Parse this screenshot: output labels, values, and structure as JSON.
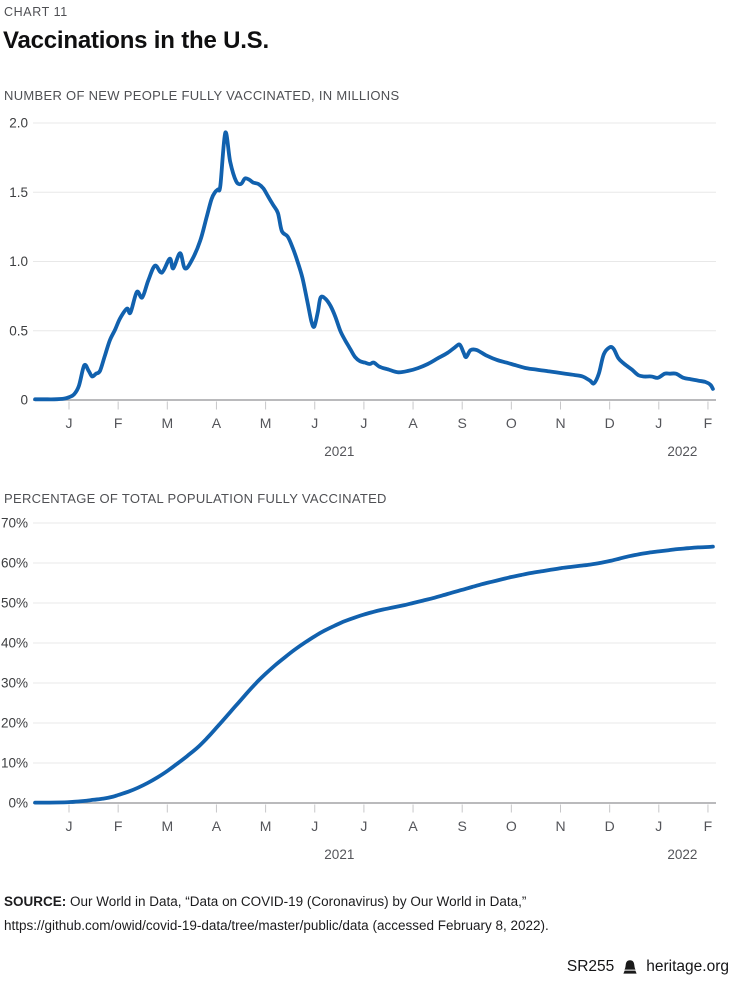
{
  "page": {
    "kicker": "CHART 11",
    "title": "Vaccinations in the U.S.",
    "source_label": "SOURCE:",
    "source_line1": " Our World in Data, “Data on COVID-19 (Coronavirus) by Our World in Data,”",
    "source_line2": "https://github.com/owid/covid-19-data/tree/master/public/data (accessed February 8, 2022).",
    "footer": {
      "report_id": "SR255",
      "site": "heritage.org",
      "logo": "liberty-bell-icon"
    }
  },
  "colors": {
    "line": "#1161ae",
    "grid": "#e8e8e8",
    "axis": "#a3a3a5",
    "tick": "#c7c7c9"
  },
  "chart_data": [
    {
      "type": "line",
      "title": "NUMBER OF NEW PEOPLE FULLY VACCINATED, IN MILLIONS",
      "x_unit": "months, Dec 2020 - Feb 2022 (0 = Jan 1, 2021)",
      "x_tick_labels": [
        "J",
        "F",
        "M",
        "A",
        "M",
        "J",
        "J",
        "A",
        "S",
        "O",
        "N",
        "D",
        "J",
        "F"
      ],
      "year_labels": [
        {
          "text": "2021",
          "month_index": 5.5
        },
        {
          "text": "2022",
          "month_index": 12.48
        }
      ],
      "y_ticks": [
        0,
        0.5,
        1.0,
        1.5,
        2.0
      ],
      "y_tick_labels": [
        "0",
        "0.5",
        "1.0",
        "1.5",
        "2.0"
      ],
      "ylim": [
        0,
        2.0
      ],
      "xlim": [
        -0.75,
        13.17
      ],
      "grid": true,
      "legend": "none",
      "points": [
        [
          -0.69,
          0.005
        ],
        [
          -0.5,
          0.005
        ],
        [
          -0.3,
          0.005
        ],
        [
          -0.1,
          0.01
        ],
        [
          0,
          0.02
        ],
        [
          0.1,
          0.04
        ],
        [
          0.2,
          0.1
        ],
        [
          0.31,
          0.25
        ],
        [
          0.4,
          0.21
        ],
        [
          0.47,
          0.17
        ],
        [
          0.55,
          0.19
        ],
        [
          0.63,
          0.21
        ],
        [
          0.73,
          0.32
        ],
        [
          0.83,
          0.43
        ],
        [
          0.94,
          0.51
        ],
        [
          1.04,
          0.59
        ],
        [
          1.18,
          0.66
        ],
        [
          1.25,
          0.63
        ],
        [
          1.38,
          0.78
        ],
        [
          1.49,
          0.74
        ],
        [
          1.61,
          0.86
        ],
        [
          1.75,
          0.97
        ],
        [
          1.89,
          0.92
        ],
        [
          2.05,
          1.02
        ],
        [
          2.12,
          0.95
        ],
        [
          2.26,
          1.06
        ],
        [
          2.36,
          0.95
        ],
        [
          2.5,
          1.01
        ],
        [
          2.67,
          1.15
        ],
        [
          2.8,
          1.32
        ],
        [
          2.9,
          1.45
        ],
        [
          2.97,
          1.5
        ],
        [
          3.03,
          1.52
        ],
        [
          3.08,
          1.55
        ],
        [
          3.18,
          1.93
        ],
        [
          3.28,
          1.72
        ],
        [
          3.4,
          1.58
        ],
        [
          3.5,
          1.56
        ],
        [
          3.58,
          1.6
        ],
        [
          3.67,
          1.59
        ],
        [
          3.75,
          1.57
        ],
        [
          3.85,
          1.56
        ],
        [
          3.95,
          1.53
        ],
        [
          4.05,
          1.47
        ],
        [
          4.15,
          1.41
        ],
        [
          4.25,
          1.35
        ],
        [
          4.33,
          1.22
        ],
        [
          4.45,
          1.18
        ],
        [
          4.55,
          1.1
        ],
        [
          4.65,
          1
        ],
        [
          4.75,
          0.88
        ],
        [
          4.85,
          0.71
        ],
        [
          4.93,
          0.57
        ],
        [
          4.99,
          0.53
        ],
        [
          5.06,
          0.63
        ],
        [
          5.12,
          0.74
        ],
        [
          5.22,
          0.73
        ],
        [
          5.32,
          0.68
        ],
        [
          5.42,
          0.6
        ],
        [
          5.52,
          0.5
        ],
        [
          5.62,
          0.43
        ],
        [
          5.72,
          0.37
        ],
        [
          5.82,
          0.31
        ],
        [
          5.92,
          0.28
        ],
        [
          6.02,
          0.27
        ],
        [
          6.12,
          0.26
        ],
        [
          6.2,
          0.27
        ],
        [
          6.32,
          0.24
        ],
        [
          6.5,
          0.22
        ],
        [
          6.7,
          0.2
        ],
        [
          6.9,
          0.21
        ],
        [
          7.1,
          0.23
        ],
        [
          7.3,
          0.26
        ],
        [
          7.5,
          0.3
        ],
        [
          7.7,
          0.34
        ],
        [
          7.85,
          0.38
        ],
        [
          7.95,
          0.4
        ],
        [
          8.03,
          0.34
        ],
        [
          8.08,
          0.31
        ],
        [
          8.17,
          0.36
        ],
        [
          8.3,
          0.36
        ],
        [
          8.5,
          0.32
        ],
        [
          8.7,
          0.29
        ],
        [
          8.9,
          0.27
        ],
        [
          9.1,
          0.25
        ],
        [
          9.3,
          0.23
        ],
        [
          9.5,
          0.22
        ],
        [
          9.7,
          0.21
        ],
        [
          9.9,
          0.2
        ],
        [
          10.1,
          0.19
        ],
        [
          10.3,
          0.18
        ],
        [
          10.45,
          0.17
        ],
        [
          10.6,
          0.14
        ],
        [
          10.68,
          0.12
        ],
        [
          10.78,
          0.19
        ],
        [
          10.88,
          0.33
        ],
        [
          11,
          0.38
        ],
        [
          11.08,
          0.37
        ],
        [
          11.18,
          0.3
        ],
        [
          11.3,
          0.26
        ],
        [
          11.45,
          0.22
        ],
        [
          11.58,
          0.18
        ],
        [
          11.7,
          0.17
        ],
        [
          11.85,
          0.17
        ],
        [
          11.98,
          0.16
        ],
        [
          12.12,
          0.19
        ],
        [
          12.22,
          0.19
        ],
        [
          12.35,
          0.19
        ],
        [
          12.5,
          0.16
        ],
        [
          12.65,
          0.15
        ],
        [
          12.8,
          0.14
        ],
        [
          12.95,
          0.13
        ],
        [
          13.05,
          0.11
        ],
        [
          13.1,
          0.08
        ]
      ]
    },
    {
      "type": "line",
      "title": "PERCENTAGE OF TOTAL POPULATION FULLY VACCINATED",
      "x_unit": "months, Dec 2020 - Feb 2022 (0 = Jan 1, 2021)",
      "x_tick_labels": [
        "J",
        "F",
        "M",
        "A",
        "M",
        "J",
        "J",
        "A",
        "S",
        "O",
        "N",
        "D",
        "J",
        "F"
      ],
      "year_labels": [
        {
          "text": "2021",
          "month_index": 5.5
        },
        {
          "text": "2022",
          "month_index": 12.48
        }
      ],
      "y_ticks": [
        0,
        10,
        20,
        30,
        40,
        50,
        60,
        70
      ],
      "y_tick_labels": [
        "0%",
        "10%",
        "20%",
        "30%",
        "40%",
        "50%",
        "60%",
        "70%"
      ],
      "ylim": [
        0,
        70
      ],
      "xlim": [
        -0.75,
        13.17
      ],
      "grid": true,
      "legend": "none",
      "points": [
        [
          -0.69,
          0.1
        ],
        [
          -0.4,
          0.1
        ],
        [
          -0.1,
          0.15
        ],
        [
          0.1,
          0.3
        ],
        [
          0.3,
          0.5
        ],
        [
          0.5,
          0.8
        ],
        [
          0.7,
          1.1
        ],
        [
          0.9,
          1.6
        ],
        [
          1,
          2
        ],
        [
          1.2,
          2.8
        ],
        [
          1.4,
          3.8
        ],
        [
          1.6,
          5
        ],
        [
          1.8,
          6.4
        ],
        [
          2,
          8
        ],
        [
          2.2,
          9.8
        ],
        [
          2.4,
          11.7
        ],
        [
          2.6,
          13.7
        ],
        [
          2.8,
          16.1
        ],
        [
          3,
          18.8
        ],
        [
          3.2,
          21.6
        ],
        [
          3.4,
          24.4
        ],
        [
          3.6,
          27.2
        ],
        [
          3.8,
          29.9
        ],
        [
          4,
          32.3
        ],
        [
          4.2,
          34.5
        ],
        [
          4.4,
          36.5
        ],
        [
          4.6,
          38.4
        ],
        [
          4.8,
          40.1
        ],
        [
          5,
          41.7
        ],
        [
          5.2,
          43.1
        ],
        [
          5.4,
          44.3
        ],
        [
          5.6,
          45.4
        ],
        [
          5.8,
          46.3
        ],
        [
          6,
          47.1
        ],
        [
          6.2,
          47.8
        ],
        [
          6.4,
          48.4
        ],
        [
          6.6,
          48.9
        ],
        [
          6.8,
          49.4
        ],
        [
          7,
          50
        ],
        [
          7.2,
          50.6
        ],
        [
          7.4,
          51.2
        ],
        [
          7.6,
          51.9
        ],
        [
          7.8,
          52.6
        ],
        [
          8,
          53.3
        ],
        [
          8.2,
          54
        ],
        [
          8.4,
          54.7
        ],
        [
          8.6,
          55.3
        ],
        [
          8.8,
          55.9
        ],
        [
          9,
          56.5
        ],
        [
          9.2,
          57
        ],
        [
          9.4,
          57.5
        ],
        [
          9.6,
          57.9
        ],
        [
          9.8,
          58.3
        ],
        [
          10,
          58.7
        ],
        [
          10.2,
          59
        ],
        [
          10.4,
          59.3
        ],
        [
          10.6,
          59.6
        ],
        [
          10.8,
          60
        ],
        [
          11,
          60.5
        ],
        [
          11.2,
          61.1
        ],
        [
          11.4,
          61.7
        ],
        [
          11.6,
          62.2
        ],
        [
          11.8,
          62.6
        ],
        [
          12,
          62.9
        ],
        [
          12.2,
          63.2
        ],
        [
          12.4,
          63.5
        ],
        [
          12.6,
          63.7
        ],
        [
          12.8,
          63.9
        ],
        [
          13,
          64
        ],
        [
          13.1,
          64.1
        ]
      ]
    }
  ]
}
